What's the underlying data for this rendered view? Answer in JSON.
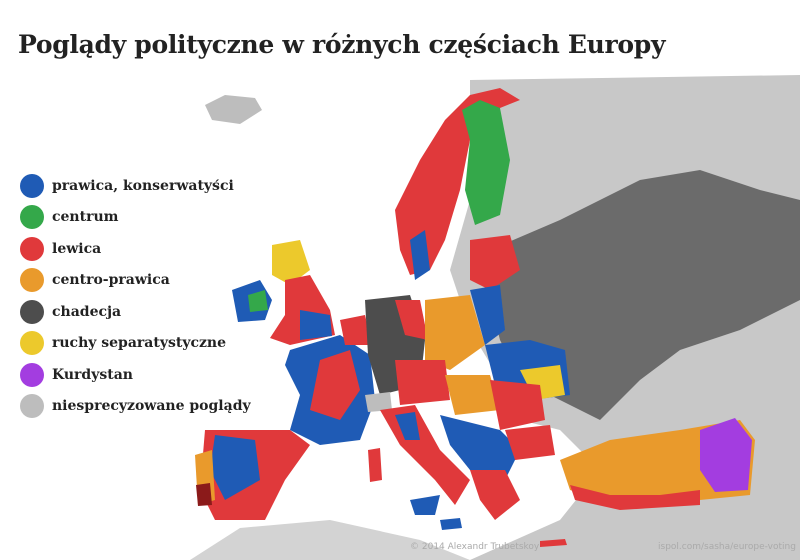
{
  "title": "Poglądy polityczne w różnych częściach Europy",
  "legend": [
    {
      "label": "prawica, konserwatyści",
      "color": "#1f5bb5"
    },
    {
      "label": "centrum",
      "color": "#34a84a"
    },
    {
      "label": "lewica",
      "color": "#e0393b"
    },
    {
      "label": "centro-prawica",
      "color": "#e99a2c"
    },
    {
      "label": "chadecja",
      "color": "#4d4d4d"
    },
    {
      "label": "ruchy separatystyczne",
      "color": "#ecc92c"
    },
    {
      "label": "Kurdystan",
      "color": "#a33de0"
    },
    {
      "label": "niesprecyzowane poglądy",
      "color": "#bdbdbd"
    }
  ],
  "credits": {
    "author": "© 2014 Alexandr Trubetskoy",
    "source": "ispol.com/sasha/europe-voting"
  },
  "colors": {
    "land_outside": "#c8c8c8",
    "russia_dark": "#6b6b6b"
  }
}
